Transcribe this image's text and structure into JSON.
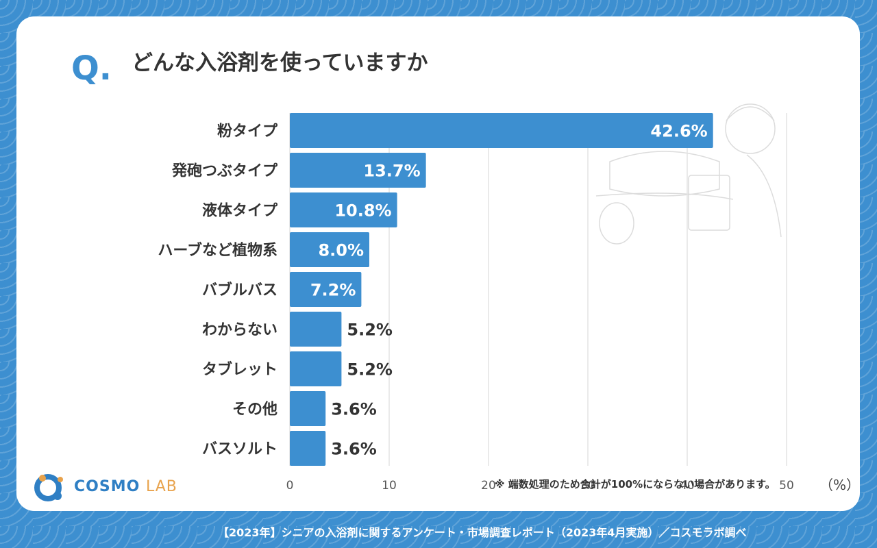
{
  "header": {
    "q_mark": "Q.",
    "title": "どんな入浴剤を使っていますか"
  },
  "chart_data": {
    "type": "bar",
    "orientation": "horizontal",
    "categories": [
      "粉タイプ",
      "発砲つぶタイプ",
      "液体タイプ",
      "ハーブなど植物系",
      "バブルバス",
      "わからない",
      "タブレット",
      "その他",
      "バスソルト"
    ],
    "values": [
      42.6,
      13.7,
      10.8,
      8.0,
      7.2,
      5.2,
      5.2,
      3.6,
      3.6
    ],
    "value_labels": [
      "42.6%",
      "13.7%",
      "10.8%",
      "8.0%",
      "7.2%",
      "5.2%",
      "5.2%",
      "3.6%",
      "3.6%"
    ],
    "xlim": [
      0,
      50
    ],
    "ticks": [
      "0",
      "10",
      "20",
      "30",
      "40",
      "50"
    ],
    "unit": "（%）",
    "bar_color": "#3d8fd0",
    "grid": true
  },
  "note": "※ 端数処理のため合計が100%にならない場合があります。",
  "logo": {
    "main": "COSMO",
    "sub": "LAB"
  },
  "footer": "【2023年】シニアの入浴剤に関するアンケート・市場調査レポート（2023年4月実施）／コスモラボ調べ"
}
